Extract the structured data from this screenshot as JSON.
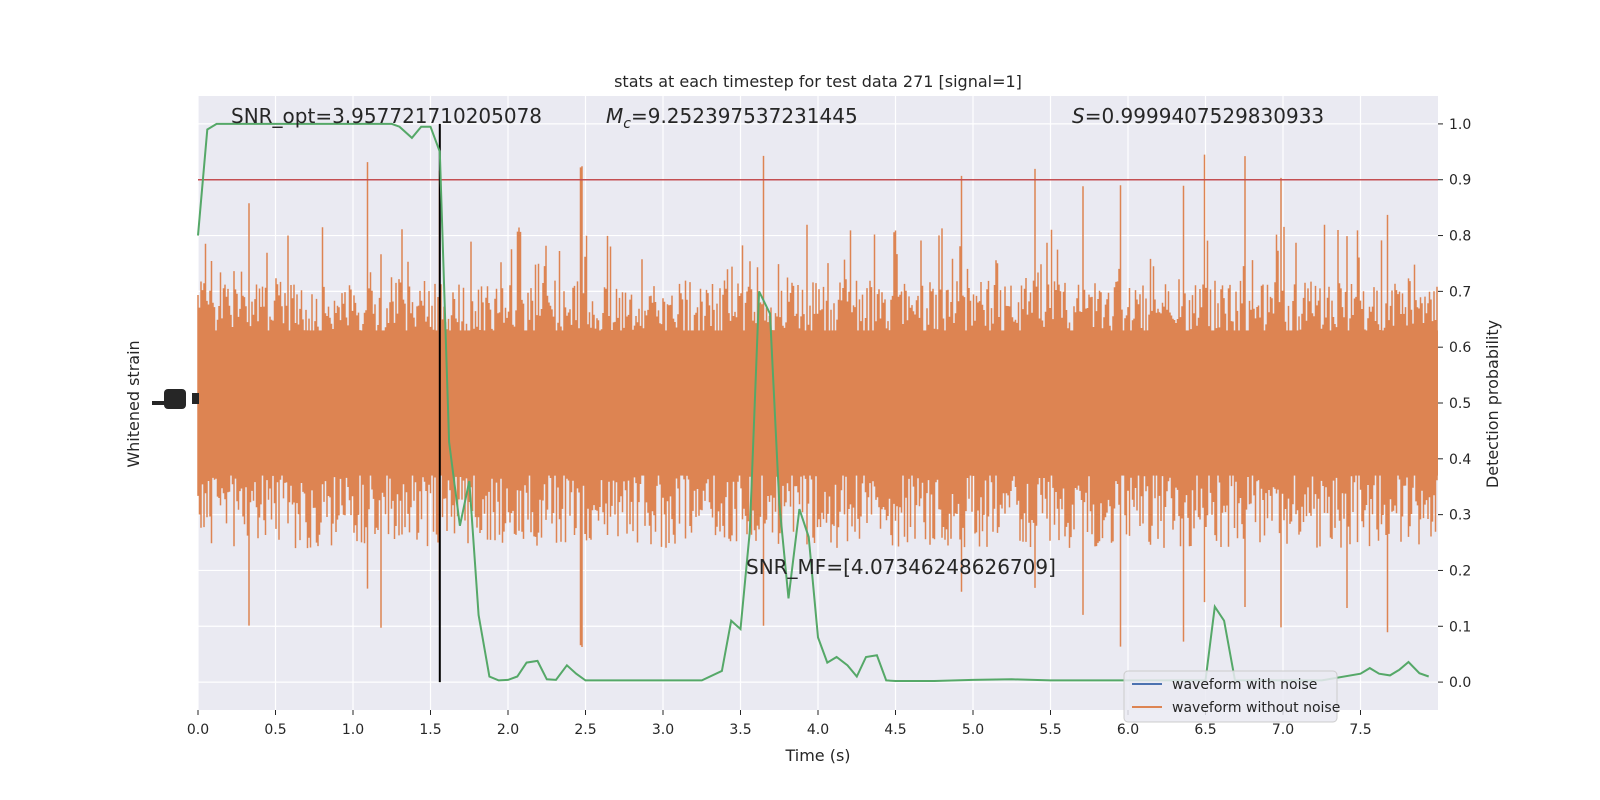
{
  "chart_data": {
    "type": "line",
    "title": "stats at each timestep for test data 271 [signal=1]",
    "xlabel": "Time (s)",
    "ylabel_left": "Whitened strain",
    "ylabel_right": "Detection probability",
    "xlim": [
      0,
      8
    ],
    "ylim_right": [
      -0.05,
      1.05
    ],
    "x_ticks": [
      "0.0",
      "0.5",
      "1.0",
      "1.5",
      "2.0",
      "2.5",
      "3.0",
      "3.5",
      "4.0",
      "4.5",
      "5.0",
      "5.5",
      "6.0",
      "6.5",
      "7.0",
      "7.5"
    ],
    "x_tick_values": [
      0,
      0.5,
      1,
      1.5,
      2,
      2.5,
      3,
      3.5,
      4,
      4.5,
      5,
      5.5,
      6,
      6.5,
      7,
      7.5
    ],
    "y_ticks_right": [
      "0.0",
      "0.1",
      "0.2",
      "0.3",
      "0.4",
      "0.5",
      "0.6",
      "0.7",
      "0.8",
      "0.9",
      "1.0"
    ],
    "y_tick_values_right": [
      0,
      0.1,
      0.2,
      0.3,
      0.4,
      0.5,
      0.6,
      0.7,
      0.8,
      0.9,
      1.0
    ],
    "threshold": 0.9,
    "event_time": 1.56,
    "annotations": {
      "snr_opt": "SNR_opt=3.957721710205078",
      "mc_symbol": "M",
      "mc_subscript": "c",
      "mc_value": "=9.252397537231445",
      "s_symbol": "S",
      "s_value": "=0.9999407529830933",
      "snr_mf": "SNR_MF=[4.07346248626709]"
    },
    "series": [
      {
        "name": "waveform with noise",
        "color": "#4c72b0"
      },
      {
        "name": "waveform without noise",
        "color": "#dd8452"
      }
    ],
    "detection_probability": {
      "color": "#55a868",
      "x": [
        0.0,
        0.06,
        0.12,
        0.25,
        0.5,
        0.75,
        1.0,
        1.25,
        1.3,
        1.38,
        1.44,
        1.5,
        1.56,
        1.62,
        1.69,
        1.75,
        1.81,
        1.88,
        1.94,
        2.0,
        2.06,
        2.12,
        2.19,
        2.25,
        2.31,
        2.38,
        2.44,
        2.5,
        2.75,
        3.0,
        3.25,
        3.38,
        3.44,
        3.5,
        3.56,
        3.62,
        3.69,
        3.75,
        3.81,
        3.88,
        3.94,
        4.0,
        4.06,
        4.12,
        4.19,
        4.25,
        4.31,
        4.38,
        4.44,
        4.5,
        4.75,
        5.0,
        5.25,
        5.5,
        5.75,
        6.0,
        6.25,
        6.5,
        6.56,
        6.62,
        6.69,
        6.75,
        7.0,
        7.25,
        7.5,
        7.56,
        7.62,
        7.69,
        7.75,
        7.81,
        7.88,
        7.94
      ],
      "y": [
        0.8,
        0.99,
        1.0,
        1.0,
        1.0,
        1.0,
        1.0,
        1.0,
        0.995,
        0.975,
        0.995,
        0.995,
        0.95,
        0.43,
        0.28,
        0.36,
        0.12,
        0.01,
        0.003,
        0.004,
        0.01,
        0.035,
        0.038,
        0.005,
        0.004,
        0.03,
        0.015,
        0.003,
        0.003,
        0.003,
        0.003,
        0.02,
        0.11,
        0.095,
        0.27,
        0.7,
        0.66,
        0.32,
        0.15,
        0.31,
        0.26,
        0.08,
        0.035,
        0.045,
        0.03,
        0.01,
        0.045,
        0.048,
        0.003,
        0.002,
        0.002,
        0.004,
        0.005,
        0.003,
        0.003,
        0.003,
        0.003,
        0.003,
        0.135,
        0.11,
        0.003,
        0.003,
        0.003,
        0.003,
        0.015,
        0.025,
        0.015,
        0.012,
        0.022,
        0.036,
        0.016,
        0.01
      ]
    }
  }
}
